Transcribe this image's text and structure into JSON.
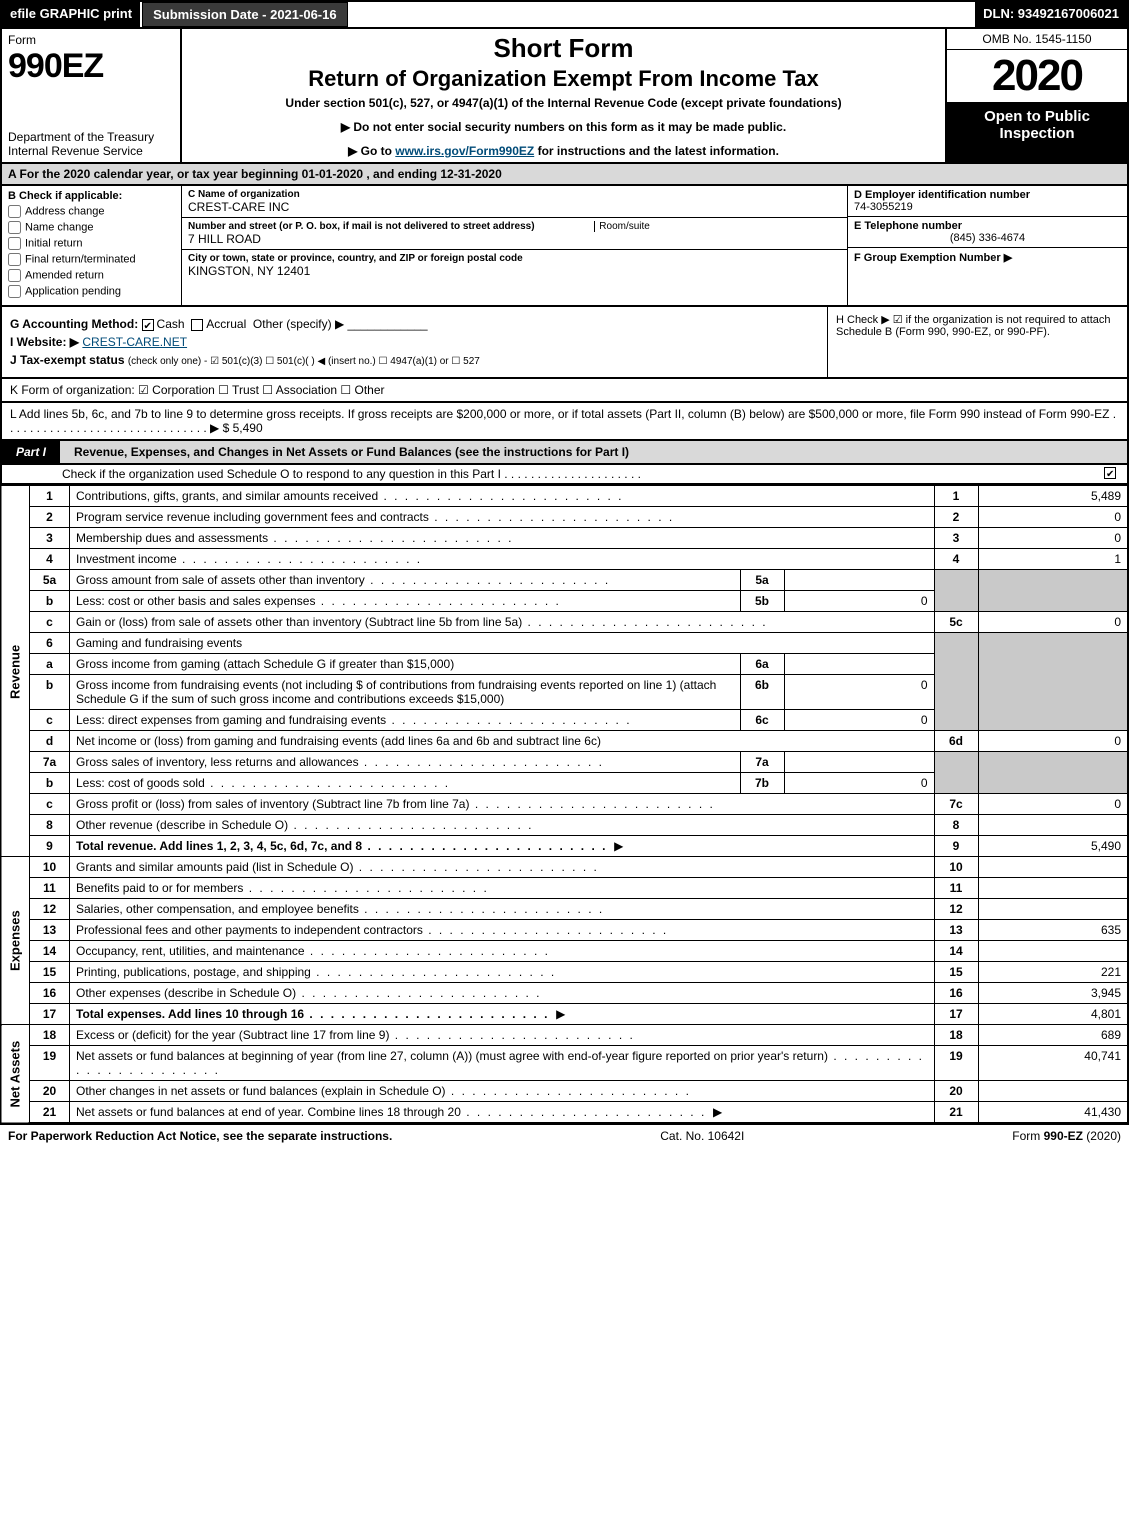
{
  "topbar": {
    "efile": "efile GRAPHIC print",
    "submission": "Submission Date - 2021-06-16",
    "dln": "DLN: 93492167006021"
  },
  "header": {
    "form_label": "Form",
    "form_number": "990EZ",
    "dept": "Department of the Treasury\nInternal Revenue Service",
    "short_form": "Short Form",
    "return_title": "Return of Organization Exempt From Income Tax",
    "under": "Under section 501(c), 527, or 4947(a)(1) of the Internal Revenue Code (except private foundations)",
    "ssn_line": "Do not enter social security numbers on this form as it may be made public.",
    "goto_pre": "Go to ",
    "goto_link": "www.irs.gov/Form990EZ",
    "goto_post": " for instructions and the latest information.",
    "omb": "OMB No. 1545-1150",
    "year": "2020",
    "open": "Open to Public Inspection"
  },
  "tax_year_line": "A  For the 2020 calendar year, or tax year beginning 01-01-2020 , and ending 12-31-2020",
  "section_b": {
    "header": "B  Check if applicable:",
    "items": [
      "Address change",
      "Name change",
      "Initial return",
      "Final return/terminated",
      "Amended return",
      "Application pending"
    ]
  },
  "section_c": {
    "name_label": "C Name of organization",
    "name_value": "CREST-CARE INC",
    "street_label": "Number and street (or P. O. box, if mail is not delivered to street address)",
    "street_value": "7 HILL ROAD",
    "room_label": "Room/suite",
    "city_label": "City or town, state or province, country, and ZIP or foreign postal code",
    "city_value": "KINGSTON, NY  12401"
  },
  "section_d": {
    "ein_label": "D Employer identification number",
    "ein_value": "74-3055219",
    "tel_label": "E Telephone number",
    "tel_value": "(845) 336-4674",
    "group_label": "F Group Exemption Number  ▶"
  },
  "mid": {
    "g_label": "G Accounting Method:",
    "g_cash": "Cash",
    "g_accrual": "Accrual",
    "g_other": "Other (specify) ▶",
    "i_label": "I Website: ▶",
    "i_value": "CREST-CARE.NET",
    "j_label": "J Tax-exempt status",
    "j_rest": "(check only one) -  ☑ 501(c)(3)  ☐ 501(c)(  ) ◀ (insert no.)  ☐ 4947(a)(1) or  ☐ 527",
    "h_text": "H  Check ▶ ☑ if the organization is not required to attach Schedule B (Form 990, 990-EZ, or 990-PF)."
  },
  "k_line": "K Form of organization:   ☑ Corporation   ☐ Trust   ☐ Association   ☐ Other",
  "l_line": "L Add lines 5b, 6c, and 7b to line 9 to determine gross receipts. If gross receipts are $200,000 or more, or if total assets (Part II, column (B) below) are $500,000 or more, file Form 990 instead of Form 990-EZ . . . . . . . . . . . . . . . . . . . . . . . . . . . . . . . ▶ $ 5,490",
  "part1": {
    "title": "Part I",
    "heading": "Revenue, Expenses, and Changes in Net Assets or Fund Balances (see the instructions for Part I)",
    "check_o": "Check if the organization used Schedule O to respond to any question in this Part I . . . . . . . . . . . . . . . . . . . . .",
    "check_o_checked": true
  },
  "categories": {
    "revenue": "Revenue",
    "expenses": "Expenses",
    "netassets": "Net Assets"
  },
  "lines": {
    "l1": {
      "n": "1",
      "d": "Contributions, gifts, grants, and similar amounts received",
      "a": "5,489"
    },
    "l2": {
      "n": "2",
      "d": "Program service revenue including government fees and contracts",
      "a": "0"
    },
    "l3": {
      "n": "3",
      "d": "Membership dues and assessments",
      "a": "0"
    },
    "l4": {
      "n": "4",
      "d": "Investment income",
      "a": "1"
    },
    "l5a": {
      "n": "5a",
      "d": "Gross amount from sale of assets other than inventory",
      "sn": "5a",
      "sv": ""
    },
    "l5b": {
      "n": "b",
      "d": "Less: cost or other basis and sales expenses",
      "sn": "5b",
      "sv": "0"
    },
    "l5c": {
      "n": "c",
      "d": "Gain or (loss) from sale of assets other than inventory (Subtract line 5b from line 5a)",
      "rn": "5c",
      "a": "0"
    },
    "l6": {
      "n": "6",
      "d": "Gaming and fundraising events"
    },
    "l6a": {
      "n": "a",
      "d": "Gross income from gaming (attach Schedule G if greater than $15,000)",
      "sn": "6a",
      "sv": ""
    },
    "l6b": {
      "n": "b",
      "d": "Gross income from fundraising events (not including $            of contributions from fundraising events reported on line 1) (attach Schedule G if the sum of such gross income and contributions exceeds $15,000)",
      "sn": "6b",
      "sv": "0"
    },
    "l6c": {
      "n": "c",
      "d": "Less: direct expenses from gaming and fundraising events",
      "sn": "6c",
      "sv": "0"
    },
    "l6d": {
      "n": "d",
      "d": "Net income or (loss) from gaming and fundraising events (add lines 6a and 6b and subtract line 6c)",
      "rn": "6d",
      "a": "0"
    },
    "l7a": {
      "n": "7a",
      "d": "Gross sales of inventory, less returns and allowances",
      "sn": "7a",
      "sv": ""
    },
    "l7b": {
      "n": "b",
      "d": "Less: cost of goods sold",
      "sn": "7b",
      "sv": "0"
    },
    "l7c": {
      "n": "c",
      "d": "Gross profit or (loss) from sales of inventory (Subtract line 7b from line 7a)",
      "rn": "7c",
      "a": "0"
    },
    "l8": {
      "n": "8",
      "d": "Other revenue (describe in Schedule O)",
      "a": ""
    },
    "l9": {
      "n": "9",
      "d": "Total revenue. Add lines 1, 2, 3, 4, 5c, 6d, 7c, and 8",
      "a": "5,490",
      "arrow": true,
      "bold": true
    },
    "l10": {
      "n": "10",
      "d": "Grants and similar amounts paid (list in Schedule O)",
      "a": ""
    },
    "l11": {
      "n": "11",
      "d": "Benefits paid to or for members",
      "a": ""
    },
    "l12": {
      "n": "12",
      "d": "Salaries, other compensation, and employee benefits",
      "a": ""
    },
    "l13": {
      "n": "13",
      "d": "Professional fees and other payments to independent contractors",
      "a": "635"
    },
    "l14": {
      "n": "14",
      "d": "Occupancy, rent, utilities, and maintenance",
      "a": ""
    },
    "l15": {
      "n": "15",
      "d": "Printing, publications, postage, and shipping",
      "a": "221"
    },
    "l16": {
      "n": "16",
      "d": "Other expenses (describe in Schedule O)",
      "a": "3,945"
    },
    "l17": {
      "n": "17",
      "d": "Total expenses. Add lines 10 through 16",
      "a": "4,801",
      "arrow": true,
      "bold": true
    },
    "l18": {
      "n": "18",
      "d": "Excess or (deficit) for the year (Subtract line 17 from line 9)",
      "a": "689"
    },
    "l19": {
      "n": "19",
      "d": "Net assets or fund balances at beginning of year (from line 27, column (A)) (must agree with end-of-year figure reported on prior year's return)",
      "a": "40,741"
    },
    "l20": {
      "n": "20",
      "d": "Other changes in net assets or fund balances (explain in Schedule O)",
      "a": ""
    },
    "l21": {
      "n": "21",
      "d": "Net assets or fund balances at end of year. Combine lines 18 through 20",
      "a": "41,430",
      "arrow": true
    }
  },
  "footer": {
    "left": "For Paperwork Reduction Act Notice, see the separate instructions.",
    "center": "Cat. No. 10642I",
    "right_pre": "Form ",
    "right_bold": "990-EZ",
    "right_post": " (2020)"
  },
  "colors": {
    "black": "#000000",
    "grey_header": "#d9d9d9",
    "grey_cell": "#c9c9c9",
    "darkbtn": "#3a3a3a",
    "link": "#004b78"
  }
}
